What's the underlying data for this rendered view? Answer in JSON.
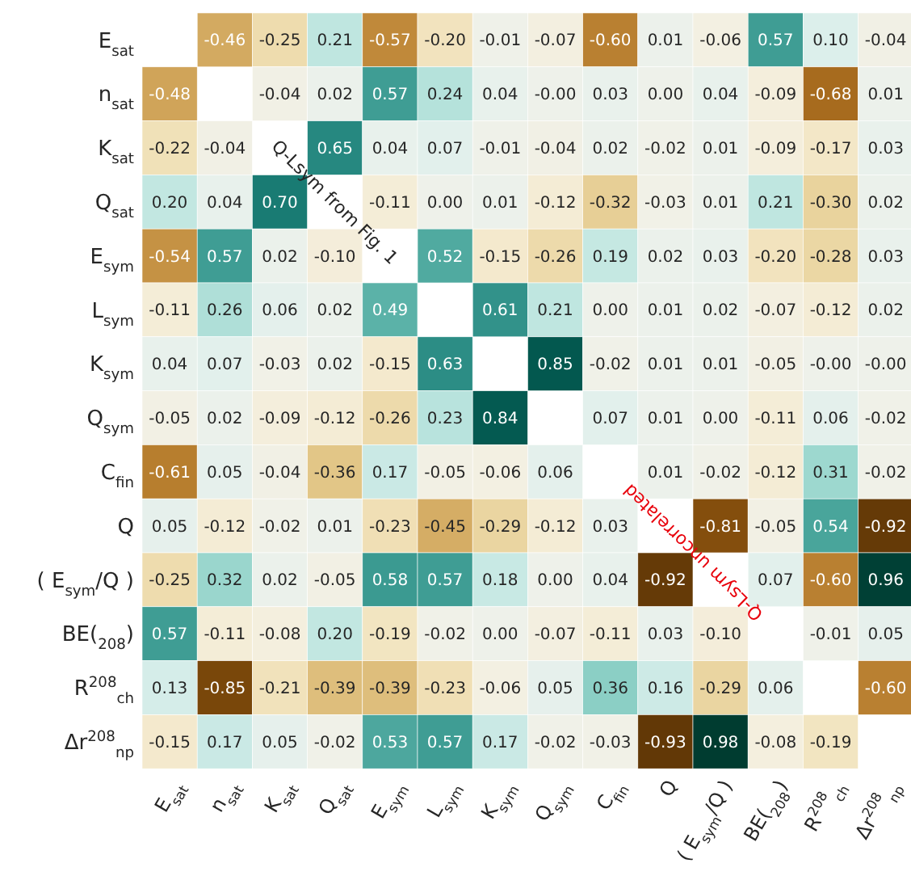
{
  "chart_data": {
    "type": "heatmap",
    "categories": [
      "E$_{sat}$",
      "n$_{sat}$",
      "K$_{sat}$",
      "Q$_{sat}$",
      "E$_{sym}$",
      "L$_{sym}$",
      "K$_{sym}$",
      "Q$_{sym}$",
      "C$_{fin}$",
      "Q",
      "( E$_{sym}$/Q )",
      "BE($_{208}$)",
      "R$^{208}$$_{ch}$",
      "Δr$^{208}$$_{np}$"
    ],
    "y_categories": [
      "E$_{sat}$",
      "n$_{sat}$",
      "K$_{sat}$",
      "Q$_{sat}$",
      "E$_{sym}$",
      "L$_{sym}$",
      "K$_{sym}$",
      "Q$_{sym}$",
      "C$_{fin}$",
      "Q",
      "( E$_{sym}$/Q )",
      "BE($_{208}$)",
      "R$^{208}$$_{ch}$",
      "Δr$^{208}$$_{np}$"
    ],
    "cells": [
      [
        null,
        -0.46,
        -0.25,
        0.21,
        -0.57,
        -0.2,
        -0.01,
        -0.07,
        -0.6,
        0.01,
        -0.06,
        0.57,
        0.1,
        -0.04
      ],
      [
        -0.48,
        null,
        -0.04,
        0.02,
        0.57,
        0.24,
        0.04,
        0,
        0.03,
        0.0,
        0.04,
        -0.09,
        -0.68,
        0.01
      ],
      [
        -0.22,
        -0.04,
        null,
        0.65,
        0.04,
        0.07,
        -0.01,
        -0.04,
        0.02,
        -0.02,
        0.01,
        -0.09,
        -0.17,
        0.03
      ],
      [
        0.2,
        0.04,
        0.7,
        null,
        -0.11,
        0.0,
        0.01,
        -0.12,
        -0.32,
        -0.03,
        0.01,
        0.21,
        -0.3,
        0.02
      ],
      [
        -0.54,
        0.57,
        0.02,
        -0.1,
        null,
        0.52,
        -0.15,
        -0.26,
        0.19,
        0.02,
        0.03,
        -0.2,
        -0.28,
        0.03
      ],
      [
        -0.11,
        0.26,
        0.06,
        0.02,
        0.49,
        null,
        0.61,
        0.21,
        0.0,
        0.01,
        0.02,
        -0.07,
        -0.12,
        0.02
      ],
      [
        0.04,
        0.07,
        -0.03,
        0.02,
        -0.15,
        0.63,
        null,
        0.85,
        -0.02,
        0.01,
        0.01,
        -0.05,
        0,
        0
      ],
      [
        -0.05,
        0.02,
        -0.09,
        -0.12,
        -0.26,
        0.23,
        0.84,
        null,
        0.07,
        0.01,
        0.0,
        -0.11,
        0.06,
        -0.02
      ],
      [
        -0.61,
        0.05,
        -0.04,
        -0.36,
        0.17,
        -0.05,
        -0.06,
        0.06,
        null,
        0.01,
        -0.02,
        -0.12,
        0.31,
        -0.02
      ],
      [
        0.05,
        -0.12,
        -0.02,
        0.01,
        -0.23,
        -0.45,
        -0.29,
        -0.12,
        0.03,
        null,
        -0.81,
        -0.05,
        0.54,
        -0.92
      ],
      [
        -0.25,
        0.32,
        0.02,
        -0.05,
        0.58,
        0.57,
        0.18,
        0.0,
        0.04,
        -0.92,
        null,
        0.07,
        -0.6,
        0.96
      ],
      [
        0.57,
        -0.11,
        -0.08,
        0.2,
        -0.19,
        -0.02,
        0.0,
        -0.07,
        -0.11,
        0.03,
        -0.1,
        null,
        -0.01,
        0.05
      ],
      [
        0.13,
        -0.85,
        -0.21,
        -0.39,
        -0.39,
        -0.23,
        -0.06,
        0.05,
        0.36,
        0.16,
        -0.29,
        0.06,
        null,
        -0.6
      ],
      [
        -0.15,
        0.17,
        0.05,
        -0.02,
        0.53,
        0.57,
        0.17,
        -0.02,
        -0.03,
        -0.93,
        0.98,
        -0.08,
        -0.19,
        null
      ]
    ],
    "cell_labels": [
      [
        null,
        "-0.46",
        "-0.25",
        "0.21",
        "-0.57",
        "-0.20",
        "-0.01",
        "-0.07",
        "-0.60",
        "0.01",
        "-0.06",
        "0.57",
        "0.10",
        "-0.04"
      ],
      [
        "-0.48",
        null,
        "-0.04",
        "0.02",
        "0.57",
        "0.24",
        "0.04",
        "-0.00",
        "0.03",
        "0.00",
        "0.04",
        "-0.09",
        "-0.68",
        "0.01"
      ],
      [
        "-0.22",
        "-0.04",
        null,
        "0.65",
        "0.04",
        "0.07",
        "-0.01",
        "-0.04",
        "0.02",
        "-0.02",
        "0.01",
        "-0.09",
        "-0.17",
        "0.03"
      ],
      [
        "0.20",
        "0.04",
        "0.70",
        null,
        "-0.11",
        "0.00",
        "0.01",
        "-0.12",
        "-0.32",
        "-0.03",
        "0.01",
        "0.21",
        "-0.30",
        "0.02"
      ],
      [
        "-0.54",
        "0.57",
        "0.02",
        "-0.10",
        null,
        "0.52",
        "-0.15",
        "-0.26",
        "0.19",
        "0.02",
        "0.03",
        "-0.20",
        "-0.28",
        "0.03"
      ],
      [
        "-0.11",
        "0.26",
        "0.06",
        "0.02",
        "0.49",
        null,
        "0.61",
        "0.21",
        "0.00",
        "0.01",
        "0.02",
        "-0.07",
        "-0.12",
        "0.02"
      ],
      [
        "0.04",
        "0.07",
        "-0.03",
        "0.02",
        "-0.15",
        "0.63",
        null,
        "0.85",
        "-0.02",
        "0.01",
        "0.01",
        "-0.05",
        "-0.00",
        "-0.00"
      ],
      [
        "-0.05",
        "0.02",
        "-0.09",
        "-0.12",
        "-0.26",
        "0.23",
        "0.84",
        null,
        "0.07",
        "0.01",
        "0.00",
        "-0.11",
        "0.06",
        "-0.02"
      ],
      [
        "-0.61",
        "0.05",
        "-0.04",
        "-0.36",
        "0.17",
        "-0.05",
        "-0.06",
        "0.06",
        null,
        "0.01",
        "-0.02",
        "-0.12",
        "0.31",
        "-0.02"
      ],
      [
        "0.05",
        "-0.12",
        "-0.02",
        "0.01",
        "-0.23",
        "-0.45",
        "-0.29",
        "-0.12",
        "0.03",
        null,
        "-0.81",
        "-0.05",
        "0.54",
        "-0.92"
      ],
      [
        "-0.25",
        "0.32",
        "0.02",
        "-0.05",
        "0.58",
        "0.57",
        "0.18",
        "0.00",
        "0.04",
        "-0.92",
        null,
        "0.07",
        "-0.60",
        "0.96"
      ],
      [
        "0.57",
        "-0.11",
        "-0.08",
        "0.20",
        "-0.19",
        "-0.02",
        "0.00",
        "-0.07",
        "-0.11",
        "0.03",
        "-0.10",
        null,
        "-0.01",
        "0.05"
      ],
      [
        "0.13",
        "-0.85",
        "-0.21",
        "-0.39",
        "-0.39",
        "-0.23",
        "-0.06",
        "0.05",
        "0.36",
        "0.16",
        "-0.29",
        "0.06",
        null,
        "-0.60"
      ],
      [
        "-0.15",
        "0.17",
        "0.05",
        "-0.02",
        "0.53",
        "0.57",
        "0.17",
        "-0.02",
        "-0.03",
        "-0.93",
        "0.98",
        "-0.08",
        "-0.19",
        null
      ]
    ],
    "data_labels": true,
    "annotations": [
      "Q-Lsym from Fig. 1",
      "Q-Lsym uncorrelated"
    ]
  }
}
